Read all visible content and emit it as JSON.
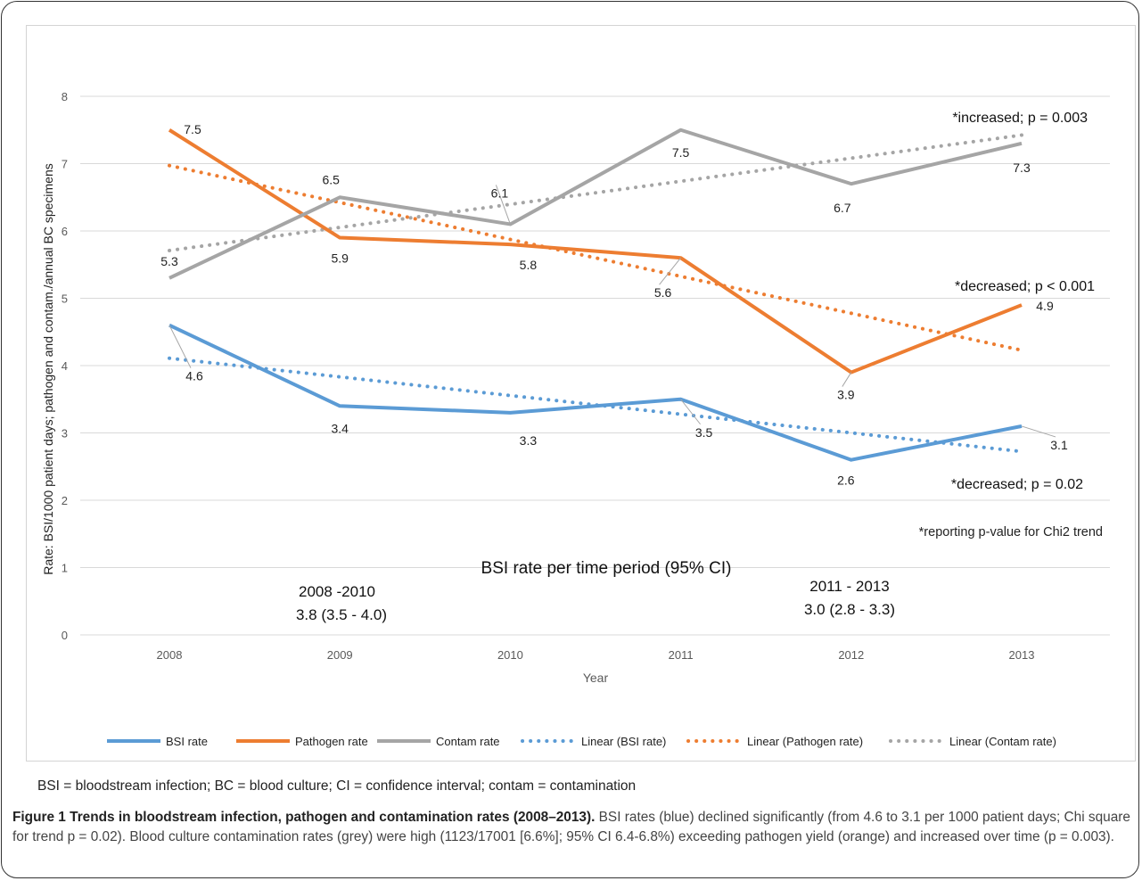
{
  "chart_data": {
    "type": "line",
    "ylabel": "Rate: BSI/1000 patient days; pathogen and contam./annual BC specimens",
    "xlabel": "Year",
    "x": [
      "2008",
      "2009",
      "2010",
      "2011",
      "2012",
      "2013"
    ],
    "ylim": [
      0,
      8
    ],
    "yticks": [
      "0",
      "1",
      "2",
      "3",
      "4",
      "5",
      "6",
      "7",
      "8"
    ],
    "grid": "horizontal",
    "legend_position": "bottom",
    "series": [
      {
        "name": "BSI rate",
        "color": "#5b9bd5",
        "style": "solid",
        "values": [
          4.6,
          3.4,
          3.3,
          3.5,
          2.6,
          3.1
        ],
        "labels": [
          "4.6",
          "3.4",
          "3.3",
          "3.5",
          "2.6",
          "3.1"
        ]
      },
      {
        "name": "Pathogen rate",
        "color": "#ed7d31",
        "style": "solid",
        "values": [
          7.5,
          5.9,
          5.8,
          5.6,
          3.9,
          4.9
        ],
        "labels": [
          "7.5",
          "5.9",
          "5.8",
          "5.6",
          "3.9",
          "4.9"
        ]
      },
      {
        "name": "Contam rate",
        "color": "#a5a5a5",
        "style": "solid",
        "values": [
          5.3,
          6.5,
          6.1,
          7.5,
          6.7,
          7.3
        ],
        "labels": [
          "5.3",
          "6.5",
          "6.1",
          "7.5",
          "6.7",
          "7.3"
        ]
      },
      {
        "name": "Linear (BSI rate)",
        "color": "#5b9bd5",
        "style": "dotted",
        "trend_of": 0
      },
      {
        "name": "Linear (Pathogen rate)",
        "color": "#ed7d31",
        "style": "dotted",
        "trend_of": 1
      },
      {
        "name": "Linear (Contam rate)",
        "color": "#a5a5a5",
        "style": "dotted",
        "trend_of": 2
      }
    ],
    "annotations": {
      "contam_trend": "*increased; p = 0.003",
      "pathogen_trend": "*decreased; p < 0.001",
      "bsi_trend": "*decreased; p = 0.02",
      "footnote": "*reporting p-value for Chi2 trend",
      "period_title": "BSI rate per time period (95% CI)",
      "period1_label": "2008 -2010",
      "period1_value": "3.8 (3.5 - 4.0)",
      "period2_label": "2011 - 2013",
      "period2_value": "3.0 (2.8 - 3.3)"
    }
  },
  "abbreviations": "BSI = bloodstream infection; BC = blood culture; CI = confidence interval; contam = contamination",
  "caption": {
    "title": "Figure 1 Trends in bloodstream infection, pathogen and contamination rates (2008–2013).",
    "body": "BSI rates (blue) declined significantly (from 4.6 to 3.1 per 1000 patient days; Chi square for trend p = 0.02). Blood culture contamination rates (grey) were high (1123/17001 [6.6%]; 95% CI 6.4-6.8%) exceeding pathogen yield (orange) and increased over time (p = 0.003)."
  }
}
